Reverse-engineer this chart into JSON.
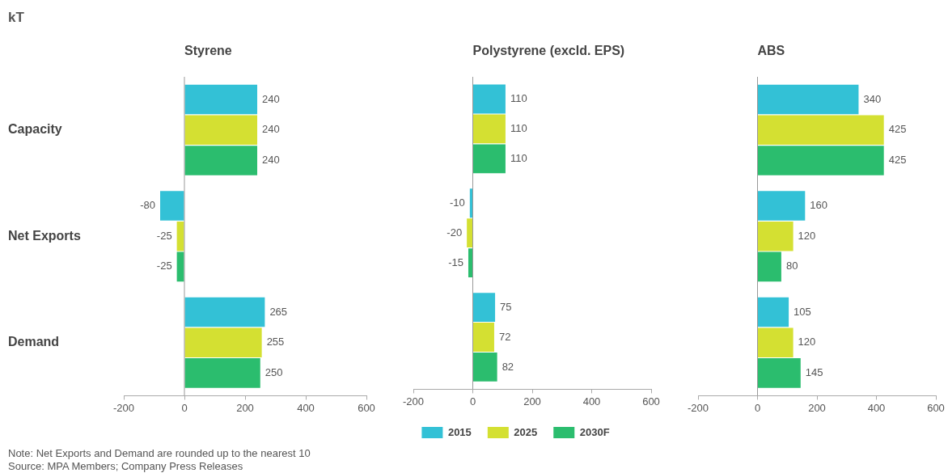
{
  "chart_data": [
    {
      "type": "bar",
      "orientation": "horizontal",
      "title": "Styrene",
      "categories": [
        "Capacity",
        "Net Exports",
        "Demand"
      ],
      "series": [
        {
          "color": "#33c1d6",
          "values": [
            240,
            -80,
            265
          ]
        },
        {
          "color": "#d4e032",
          "values": [
            240,
            -25,
            255
          ]
        },
        {
          "color": "#2bbd6e",
          "values": [
            240,
            -25,
            250
          ]
        }
      ],
      "xlim": [
        -200,
        600
      ],
      "xticks": [
        -200,
        0,
        200,
        400,
        600
      ],
      "grid": false,
      "legend": false,
      "data_labels": true,
      "ref_lines": [
        {
          "axis": "x",
          "value": 0,
          "color": "#999999"
        }
      ],
      "annotations": [
        "kT",
        "Note: Net Exports and Demand are rounded up to the nearest 10",
        "Source: MPA Members; Company Press Releases"
      ]
    },
    {
      "type": "bar",
      "orientation": "horizontal",
      "title": "Polystyrene (excld. EPS)",
      "categories": [
        null,
        null,
        null
      ],
      "series": [
        {
          "name": "2015",
          "color": "#33c1d6",
          "values": [
            110,
            -10,
            75
          ]
        },
        {
          "name": "2025",
          "color": "#d4e032",
          "values": [
            110,
            -20,
            72
          ]
        },
        {
          "name": "2030F",
          "color": "#2bbd6e",
          "values": [
            110,
            -15,
            82
          ]
        }
      ],
      "xlim": [
        -200,
        600
      ],
      "xticks": [
        -200,
        0,
        200,
        400,
        600
      ],
      "grid": false,
      "legend": "bottom",
      "data_labels": true,
      "tick_labels": "x",
      "ref_lines": [
        {
          "axis": "x",
          "value": 0,
          "color": "#999999"
        }
      ]
    },
    {
      "type": "bar",
      "orientation": "horizontal",
      "title": "ABS",
      "categories": [
        null,
        null,
        null
      ],
      "series": [
        {
          "color": "#33c1d6",
          "values": [
            340,
            160,
            105
          ]
        },
        {
          "color": "#d4e032",
          "values": [
            425,
            120,
            120
          ]
        },
        {
          "color": "#2bbd6e",
          "values": [
            425,
            80,
            145
          ]
        }
      ],
      "xlim": [
        -200,
        600
      ],
      "xticks": [
        -200,
        0,
        200,
        400,
        600
      ],
      "grid": false,
      "legend": false,
      "data_labels": true,
      "tick_labels": "x",
      "ref_lines": [
        {
          "axis": "x",
          "value": 0,
          "color": "#999999"
        }
      ]
    }
  ]
}
